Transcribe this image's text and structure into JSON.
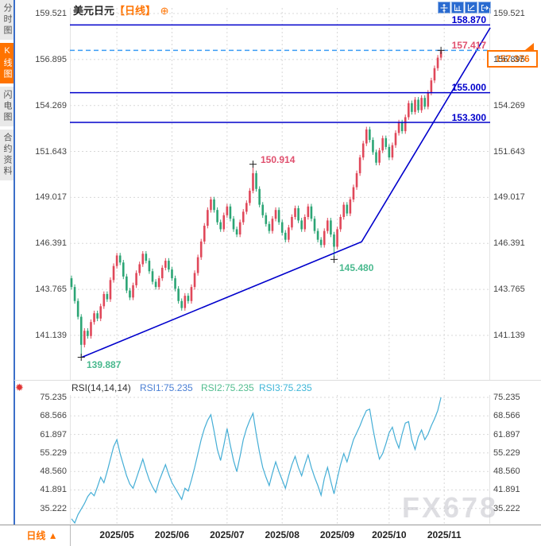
{
  "header": {
    "symbol": "美元日元",
    "period": "【日线】",
    "add_icon": "⊕",
    "toolbar_icons": [
      "pan-crosshair",
      "axis-scale",
      "trend-indicator",
      "exit-chart"
    ]
  },
  "sidebar": {
    "items": [
      {
        "label": "分时图",
        "active": false
      },
      {
        "label": "K线图",
        "active": true
      },
      {
        "label": "闪电图",
        "active": false
      },
      {
        "label": "合约资料",
        "active": false
      }
    ]
  },
  "bottom_bar": {
    "period_label": "日线",
    "arrow": "▲"
  },
  "watermark": "FX678",
  "price_tag": {
    "value": "157.376"
  },
  "rsi_gear_icon": "✹",
  "colors": {
    "accent_orange": "#ff7300",
    "annotation_blue": "#0000cc",
    "dashed_blue": "#3b9cf5",
    "label_pink": "#e0506e",
    "label_green": "#49b98e",
    "candle_up_red": "#e0485a",
    "candle_down_green": "#2ca575",
    "rsi_line": "#45aed6",
    "icon_blue": "#2a6bd0",
    "grid": "#d8d8d8"
  },
  "chart_data": [
    {
      "type": "candlestick",
      "title": "美元日元 日线 (USD/JPY Daily)",
      "y_ticks": [
        "159.521",
        "156.895",
        "154.269",
        "151.643",
        "149.017",
        "146.391",
        "143.765",
        "141.139"
      ],
      "y_range": [
        140.6,
        159.8
      ],
      "x_ticks": [
        {
          "label": "2025/05",
          "index": 14
        },
        {
          "label": "2025/06",
          "index": 31
        },
        {
          "label": "2025/07",
          "index": 48
        },
        {
          "label": "2025/08",
          "index": 65
        },
        {
          "label": "2025/09",
          "index": 82
        },
        {
          "label": "2025/10",
          "index": 98
        },
        {
          "label": "2025/11",
          "index": 115
        }
      ],
      "first_open": 144.4,
      "closes": [
        143.9,
        143.1,
        142.2,
        140.6,
        141.4,
        141.1,
        141.9,
        142.4,
        142.1,
        142.8,
        143.5,
        143.2,
        144.3,
        145.1,
        145.7,
        145.3,
        144.5,
        143.7,
        143.3,
        144.0,
        144.7,
        145.2,
        145.8,
        145.4,
        144.8,
        144.2,
        143.9,
        144.4,
        145.0,
        145.4,
        144.9,
        144.4,
        143.8,
        143.1,
        142.7,
        143.4,
        143.1,
        143.9,
        144.7,
        145.6,
        146.5,
        147.4,
        148.3,
        148.9,
        148.3,
        147.6,
        147.2,
        148.0,
        148.5,
        147.8,
        147.2,
        146.9,
        147.6,
        148.2,
        148.7,
        149.4,
        150.4,
        149.5,
        148.6,
        148.0,
        147.5,
        147.1,
        147.8,
        148.3,
        147.6,
        147.0,
        146.6,
        147.3,
        147.9,
        148.4,
        147.7,
        147.2,
        147.9,
        148.5,
        147.8,
        147.1,
        146.6,
        146.3,
        147.1,
        147.7,
        146.9,
        146.2,
        147.2,
        147.9,
        148.6,
        148.1,
        148.9,
        149.6,
        150.4,
        151.3,
        152.1,
        152.9,
        152.3,
        151.6,
        151.0,
        151.7,
        152.4,
        151.9,
        151.3,
        152.0,
        152.7,
        153.3,
        152.8,
        153.6,
        154.4,
        153.9,
        154.6,
        154.0,
        154.7,
        154.2,
        155.0,
        155.7,
        156.4,
        157.0,
        157.376
      ],
      "wick_overrides": {
        "3": {
          "low": 139.887
        },
        "56": {
          "high": 150.914
        },
        "81": {
          "low": 145.48
        },
        "114": {
          "high": 157.417
        }
      },
      "annotations": {
        "hlines": [
          {
            "value": 158.87,
            "label": "158.870",
            "style": "solid"
          },
          {
            "value": 157.417,
            "label": "157.417",
            "style": "dashed"
          },
          {
            "value": 155.0,
            "label": "155.000",
            "style": "solid"
          },
          {
            "value": 153.3,
            "label": "153.300",
            "style": "solid"
          }
        ],
        "point_labels": [
          {
            "label": "150.914",
            "index": 56,
            "at": "high"
          },
          {
            "label": "145.480",
            "index": 81,
            "at": "low"
          },
          {
            "label": "139.887",
            "index": 3,
            "at": "low"
          }
        ],
        "markers": [
          [
            3,
            "low"
          ],
          [
            56,
            "high"
          ],
          [
            81,
            "low"
          ],
          [
            114,
            "high"
          ]
        ],
        "trendline": [
          [
            3.2,
            139.89
          ],
          [
            89.5,
            146.48
          ],
          [
            129.2,
            158.71
          ]
        ],
        "current_price": 157.376
      }
    },
    {
      "type": "line",
      "name": "RSI(14,14,14)",
      "legend": [
        {
          "label": "RSI1:75.235"
        },
        {
          "label": "RSI2:75.235"
        },
        {
          "label": "RSI3:75.235"
        }
      ],
      "y_ticks": [
        "75.235",
        "68.566",
        "61.897",
        "55.229",
        "48.560",
        "41.891",
        "35.222"
      ],
      "y_range": [
        30,
        75.235
      ],
      "values": [
        31.5,
        30.0,
        33.0,
        35.0,
        37.0,
        39.5,
        41.0,
        39.8,
        43.0,
        46.5,
        44.5,
        48.5,
        53.0,
        57.5,
        60.0,
        55.0,
        51.0,
        47.0,
        44.0,
        42.5,
        46.0,
        49.5,
        53.0,
        49.0,
        45.5,
        43.0,
        41.0,
        45.0,
        48.0,
        51.0,
        47.5,
        44.5,
        42.5,
        40.5,
        38.5,
        42.5,
        41.5,
        45.5,
        50.0,
        55.0,
        60.0,
        64.0,
        67.0,
        69.0,
        63.0,
        56.5,
        52.5,
        58.0,
        64.0,
        58.0,
        52.5,
        48.5,
        54.0,
        60.0,
        64.0,
        67.0,
        69.5,
        62.0,
        55.5,
        50.0,
        46.5,
        43.5,
        48.0,
        52.0,
        48.5,
        45.5,
        42.5,
        47.0,
        51.0,
        54.0,
        50.0,
        47.0,
        51.0,
        54.5,
        50.0,
        46.5,
        43.5,
        40.0,
        46.0,
        50.0,
        45.0,
        40.5,
        46.0,
        51.0,
        55.0,
        52.0,
        56.0,
        60.0,
        62.5,
        65.0,
        68.0,
        70.5,
        71.0,
        64.0,
        58.0,
        53.0,
        55.0,
        58.5,
        62.5,
        64.5,
        60.0,
        57.0,
        62.0,
        66.0,
        66.5,
        60.0,
        56.5,
        61.0,
        63.5,
        60.0,
        62.0,
        65.0,
        67.5,
        70.5,
        75.235
      ]
    }
  ]
}
